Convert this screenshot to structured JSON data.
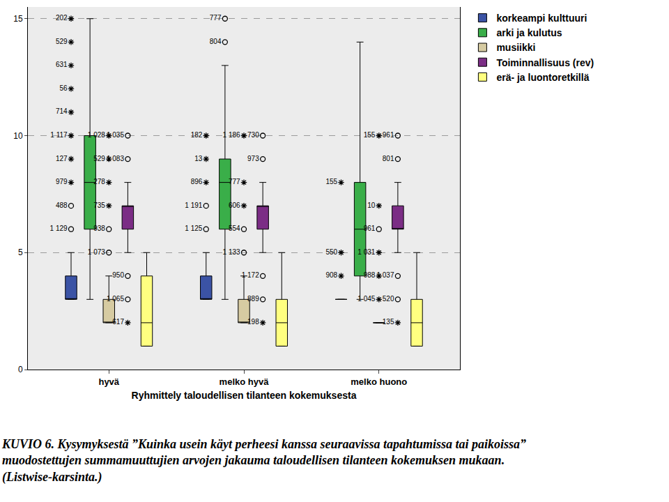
{
  "chart_data": {
    "type": "box",
    "x_label": "Ryhmittely taloudellisen tilanteen kokemuksesta",
    "caption": [
      "KUVIO 6. Kysymyksestä ”Kuinka usein käyt perheesi kanssa seuraavissa tapahtumissa tai paikoissa”",
      "muodostettujen summamuuttujien arvojen jakauma taloudellisen tilanteen kokemuksen mukaan.",
      "(Listwise-karsinta.)"
    ],
    "categories": [
      "hyvä",
      "melko hyvä",
      "melko huono"
    ],
    "ylim": [
      0,
      15.5
    ],
    "yticks": [
      0,
      5,
      10,
      15
    ],
    "grid": true,
    "legend": "top right",
    "series": [
      {
        "name": "korkeampi kulttuuri",
        "color": "#3b53a5",
        "boxes": [
          {
            "q1": 3,
            "median": 3,
            "q3": 4,
            "lowerfence": 3,
            "upperfence": 5
          },
          {
            "q1": 3,
            "median": 3,
            "q3": 4,
            "lowerfence": 3,
            "upperfence": 5
          },
          {
            "q1": 3,
            "median": 3,
            "q3": 3,
            "lowerfence": 3,
            "upperfence": 3
          }
        ],
        "outliers": [
          {
            "category": "hyvä",
            "value": 15,
            "label": "202",
            "marker": "star"
          },
          {
            "category": "hyvä",
            "value": 14,
            "label": "529",
            "marker": "star"
          },
          {
            "category": "hyvä",
            "value": 13,
            "label": "631",
            "marker": "star"
          },
          {
            "category": "hyvä",
            "value": 12,
            "label": "56",
            "marker": "star"
          },
          {
            "category": "hyvä",
            "value": 11,
            "label": "714",
            "marker": "star"
          },
          {
            "category": "hyvä",
            "value": 10,
            "label": "1 117",
            "marker": "star"
          },
          {
            "category": "hyvä",
            "value": 9,
            "label": "127",
            "marker": "star"
          },
          {
            "category": "hyvä",
            "value": 8,
            "label": "979",
            "marker": "star"
          },
          {
            "category": "hyvä",
            "value": 7,
            "label": "488",
            "marker": "circle"
          },
          {
            "category": "hyvä",
            "value": 6,
            "label": "1 129",
            "marker": "circle"
          },
          {
            "category": "melko hyvä",
            "value": 10,
            "label": "182",
            "marker": "star"
          },
          {
            "category": "melko hyvä",
            "value": 9,
            "label": "13",
            "marker": "star"
          },
          {
            "category": "melko hyvä",
            "value": 8,
            "label": "896",
            "marker": "star"
          },
          {
            "category": "melko hyvä",
            "value": 7,
            "label": "1 191",
            "marker": "circle"
          },
          {
            "category": "melko hyvä",
            "value": 6,
            "label": "1 125",
            "marker": "circle"
          },
          {
            "category": "melko huono",
            "value": 8,
            "label": "155",
            "marker": "star"
          },
          {
            "category": "melko huono",
            "value": 5,
            "label": "550",
            "marker": "star"
          },
          {
            "category": "melko huono",
            "value": 4,
            "label": "908",
            "marker": "star"
          }
        ]
      },
      {
        "name": "arki ja kulutus",
        "color": "#3aae49",
        "boxes": [
          {
            "q1": 6,
            "median": 8,
            "q3": 10,
            "lowerfence": 3,
            "upperfence": 15
          },
          {
            "q1": 6,
            "median": 8,
            "q3": 9,
            "lowerfence": 3,
            "upperfence": 13
          },
          {
            "q1": 4,
            "median": 6,
            "q3": 8,
            "lowerfence": 3,
            "upperfence": 14
          }
        ],
        "outliers": [
          {
            "category": "melko hyvä",
            "value": 15,
            "label": "777",
            "marker": "circle"
          },
          {
            "category": "melko hyvä",
            "value": 14,
            "label": "804",
            "marker": "circle"
          }
        ]
      },
      {
        "name": "musiikki",
        "color": "#d6cba2",
        "boxes": [
          {
            "q1": 2,
            "median": 2,
            "q3": 3,
            "lowerfence": 2,
            "upperfence": 4
          },
          {
            "q1": 2,
            "median": 2,
            "q3": 3,
            "lowerfence": 2,
            "upperfence": 4
          },
          {
            "q1": 2,
            "median": 2,
            "q3": 2,
            "lowerfence": 2,
            "upperfence": 2
          }
        ],
        "outliers": [
          {
            "category": "hyvä",
            "value": 10,
            "label": "1 028",
            "marker": "star"
          },
          {
            "category": "hyvä",
            "value": 9,
            "label": "529",
            "marker": "star"
          },
          {
            "category": "hyvä",
            "value": 8,
            "label": "278",
            "marker": "star"
          },
          {
            "category": "hyvä",
            "value": 7,
            "label": "735",
            "marker": "star"
          },
          {
            "category": "hyvä",
            "value": 6,
            "label": "938",
            "marker": "circle"
          },
          {
            "category": "hyvä",
            "value": 5,
            "label": "1 073",
            "marker": "circle"
          },
          {
            "category": "melko hyvä",
            "value": 10,
            "label": "1 186",
            "marker": "star"
          },
          {
            "category": "melko hyvä",
            "value": 8,
            "label": "777",
            "marker": "star"
          },
          {
            "category": "melko hyvä",
            "value": 7,
            "label": "606",
            "marker": "star"
          },
          {
            "category": "melko hyvä",
            "value": 6,
            "label": "554",
            "marker": "circle"
          },
          {
            "category": "melko hyvä",
            "value": 5,
            "label": "1 133",
            "marker": "circle"
          },
          {
            "category": "melko huono",
            "value": 10,
            "label": "155",
            "marker": "star"
          },
          {
            "category": "melko huono",
            "value": 7,
            "label": "10",
            "marker": "star"
          },
          {
            "category": "melko huono",
            "value": 6,
            "label": "961",
            "marker": "circle"
          },
          {
            "category": "melko huono",
            "value": 5,
            "label": "1 031",
            "marker": "star"
          },
          {
            "category": "melko huono",
            "value": 4,
            "label": "988",
            "marker": "star"
          },
          {
            "category": "melko huono",
            "value": 3,
            "label": "1 045",
            "marker": "star"
          }
        ]
      },
      {
        "name": "Toiminnallisuus (rev)",
        "color": "#7b2d85",
        "boxes": [
          {
            "q1": 6,
            "median": 7,
            "q3": 7,
            "lowerfence": 5,
            "upperfence": 8
          },
          {
            "q1": 6,
            "median": 7,
            "q3": 7,
            "lowerfence": 5,
            "upperfence": 8
          },
          {
            "q1": 6,
            "median": 6,
            "q3": 7,
            "lowerfence": 5,
            "upperfence": 8
          }
        ],
        "outliers": [
          {
            "category": "hyvä",
            "value": 10,
            "label": "1 035",
            "marker": "circle"
          },
          {
            "category": "hyvä",
            "value": 9,
            "label": "1 083",
            "marker": "circle"
          },
          {
            "category": "hyvä",
            "value": 4,
            "label": "950",
            "marker": "circle"
          },
          {
            "category": "hyvä",
            "value": 3,
            "label": "1 065",
            "marker": "circle"
          },
          {
            "category": "hyvä",
            "value": 2,
            "label": "617",
            "marker": "star"
          },
          {
            "category": "melko hyvä",
            "value": 10,
            "label": "730",
            "marker": "circle"
          },
          {
            "category": "melko hyvä",
            "value": 9,
            "label": "973",
            "marker": "circle"
          },
          {
            "category": "melko hyvä",
            "value": 4,
            "label": "1 172",
            "marker": "circle"
          },
          {
            "category": "melko hyvä",
            "value": 3,
            "label": "889",
            "marker": "circle"
          },
          {
            "category": "melko hyvä",
            "value": 2,
            "label": "198",
            "marker": "star"
          },
          {
            "category": "melko huono",
            "value": 10,
            "label": "961",
            "marker": "circle"
          },
          {
            "category": "melko huono",
            "value": 9,
            "label": "801",
            "marker": "circle"
          },
          {
            "category": "melko huono",
            "value": 4,
            "label": "1 037",
            "marker": "circle"
          },
          {
            "category": "melko huono",
            "value": 3,
            "label": "520",
            "marker": "circle"
          },
          {
            "category": "melko huono",
            "value": 2,
            "label": "135",
            "marker": "star"
          }
        ]
      },
      {
        "name": "erä- ja luontoretkillä",
        "color": "#ffff80",
        "boxes": [
          {
            "q1": 1,
            "median": 2,
            "q3": 4,
            "lowerfence": 1,
            "upperfence": 5
          },
          {
            "q1": 1,
            "median": 2,
            "q3": 3,
            "lowerfence": 1,
            "upperfence": 5
          },
          {
            "q1": 1,
            "median": 2,
            "q3": 3,
            "lowerfence": 1,
            "upperfence": 5
          }
        ],
        "outliers": []
      }
    ]
  }
}
